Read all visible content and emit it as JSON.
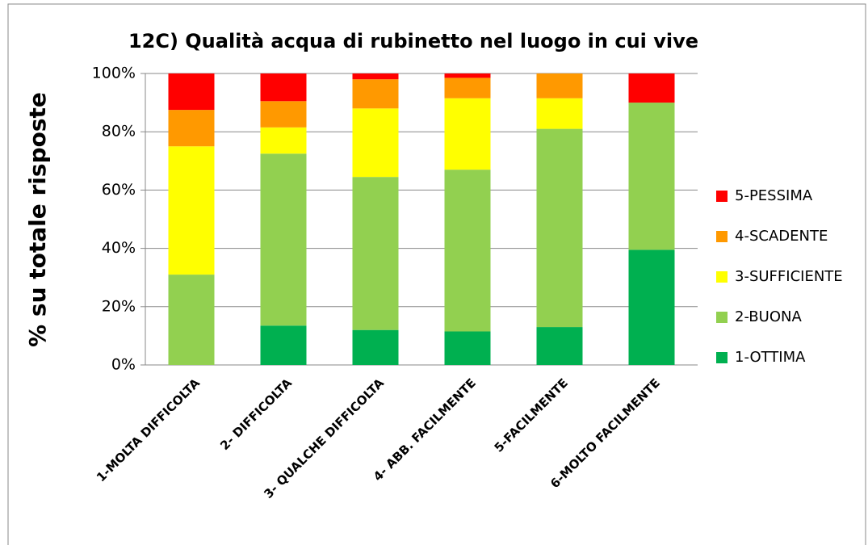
{
  "chart_data": {
    "type": "stacked_bar",
    "title": "12C) Qualità acqua di rubinetto nel luogo in cui vive",
    "y_label": "% su totale risposte",
    "categories": [
      "1-MOLTA DIFFICOLTA",
      "2- DIFFICOLTA",
      "3- QUALCHE DIFFICOLTA",
      "4- ABB. FACILMENTE",
      "5-FACILMENTE",
      "6-MOLTO FACILMENTE"
    ],
    "series": [
      {
        "name": "1-OTTIMA",
        "color": "#00b050",
        "values": [
          0,
          13.5,
          12,
          11.5,
          13,
          39.5
        ]
      },
      {
        "name": "2-BUONA",
        "color": "#92d050",
        "values": [
          31,
          59,
          52.5,
          55.5,
          68,
          50.5
        ]
      },
      {
        "name": "3-SUFFICIENTE",
        "color": "#ffff00",
        "values": [
          44,
          9,
          23.5,
          24.5,
          10.5,
          0
        ]
      },
      {
        "name": "4-SCADENTE",
        "color": "#ff9900",
        "values": [
          12.5,
          9,
          10,
          7,
          8.5,
          0
        ]
      },
      {
        "name": "5-PESSIMA",
        "color": "#ff0000",
        "values": [
          12.5,
          9.5,
          2,
          1.5,
          0,
          10
        ]
      }
    ],
    "ylim": [
      0,
      100
    ],
    "yticks": [
      {
        "value": 0,
        "label": "0%"
      },
      {
        "value": 20,
        "label": "20%"
      },
      {
        "value": 40,
        "label": "40%"
      },
      {
        "value": 60,
        "label": "60%"
      },
      {
        "value": 80,
        "label": "80%"
      },
      {
        "value": 100,
        "label": "100%"
      }
    ],
    "grid": true,
    "legend": "right"
  }
}
